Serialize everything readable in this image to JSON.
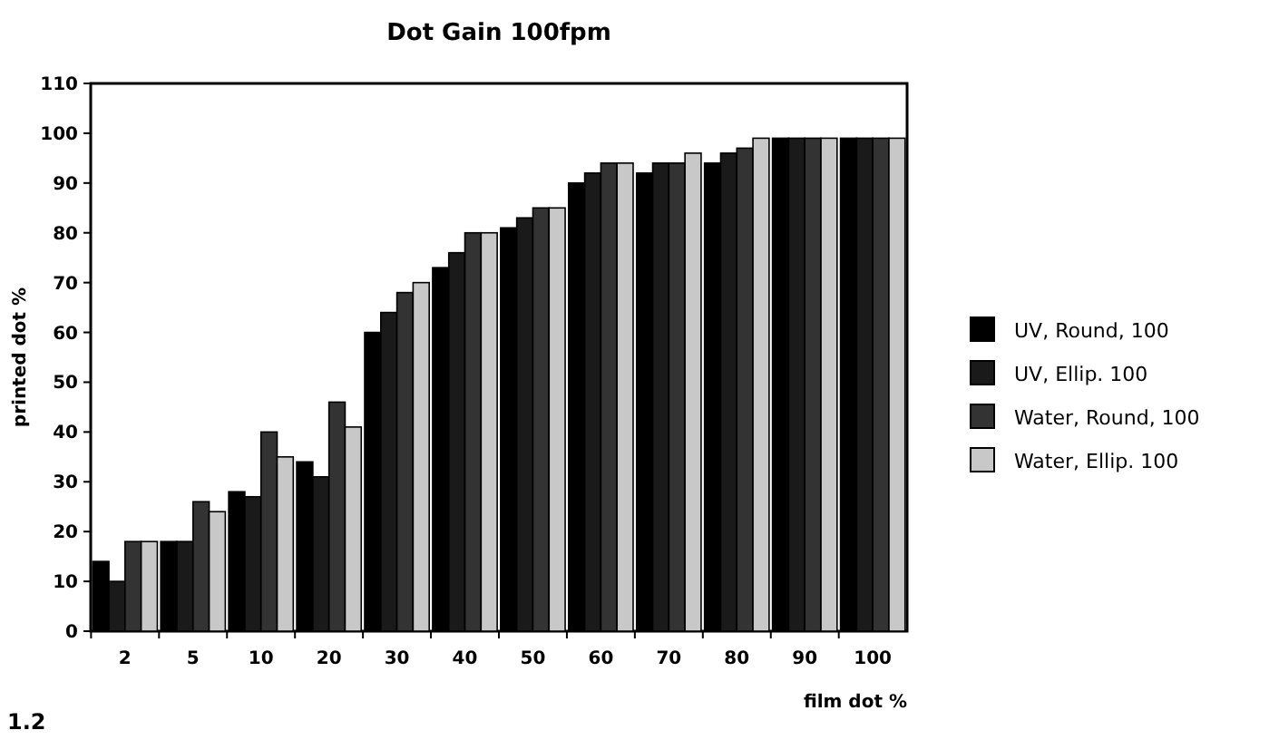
{
  "chart_data": {
    "type": "bar",
    "title": "Dot Gain 100fpm",
    "xlabel": "film dot %",
    "ylabel": "printed dot %",
    "categories": [
      "2",
      "5",
      "10",
      "20",
      "30",
      "40",
      "50",
      "60",
      "70",
      "80",
      "90",
      "100"
    ],
    "series": [
      {
        "name": "UV, Round, 100",
        "color": "#000000",
        "values": [
          14,
          18,
          28,
          34,
          60,
          73,
          81,
          90,
          92,
          94,
          99,
          99
        ]
      },
      {
        "name": "UV, Ellip. 100",
        "color": "#1a1a1a",
        "values": [
          10,
          18,
          27,
          31,
          64,
          76,
          83,
          92,
          94,
          96,
          99,
          99
        ]
      },
      {
        "name": "Water, Round, 100",
        "color": "#333333",
        "values": [
          18,
          26,
          40,
          46,
          68,
          80,
          85,
          94,
          94,
          97,
          99,
          99
        ]
      },
      {
        "name": "Water, Ellip. 100",
        "color": "#c8c8c8",
        "values": [
          18,
          24,
          35,
          41,
          70,
          80,
          85,
          94,
          96,
          99,
          99,
          99
        ]
      }
    ],
    "ylim": [
      0,
      110
    ],
    "yticks": [
      0,
      10,
      20,
      30,
      40,
      50,
      60,
      70,
      80,
      90,
      100,
      110
    ],
    "grid": false,
    "legend": "right",
    "annotations": [
      "1.2"
    ]
  }
}
